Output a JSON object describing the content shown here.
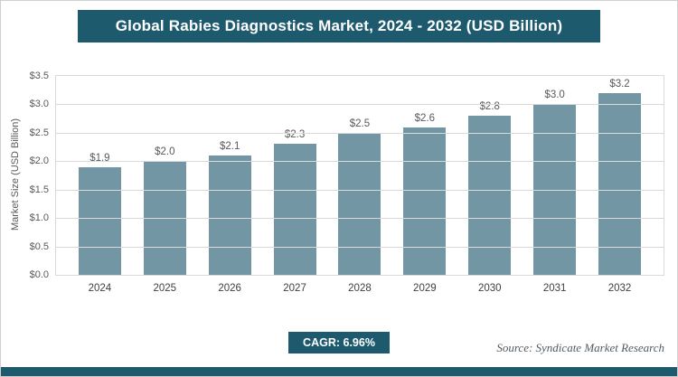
{
  "chart_data": {
    "type": "bar",
    "title": "Global Rabies Diagnostics Market, 2024 - 2032 (USD Billion)",
    "xlabel": "",
    "ylabel": "Market Size (USD Billion)",
    "categories": [
      "2024",
      "2025",
      "2026",
      "2027",
      "2028",
      "2029",
      "2030",
      "2031",
      "2032"
    ],
    "values": [
      1.9,
      2.0,
      2.1,
      2.3,
      2.5,
      2.6,
      2.8,
      3.0,
      3.2
    ],
    "labels": [
      "$1.9",
      "$2.0",
      "$2.1",
      "$2.3",
      "$2.5",
      "$2.6",
      "$2.8",
      "$3.0",
      "$3.2"
    ],
    "ylim": [
      0,
      3.5
    ],
    "y_ticks": [
      "$0.0",
      "$0.5",
      "$1.0",
      "$1.5",
      "$2.0",
      "$2.5",
      "$3.0",
      "$3.5"
    ],
    "grid": "horizontal",
    "legend": "none",
    "bar_color": "#7396A4",
    "accent_color": "#1E5A6E"
  },
  "footer": {
    "cagr_label": "CAGR: 6.96%",
    "source": "Source: Syndicate Market Research"
  }
}
